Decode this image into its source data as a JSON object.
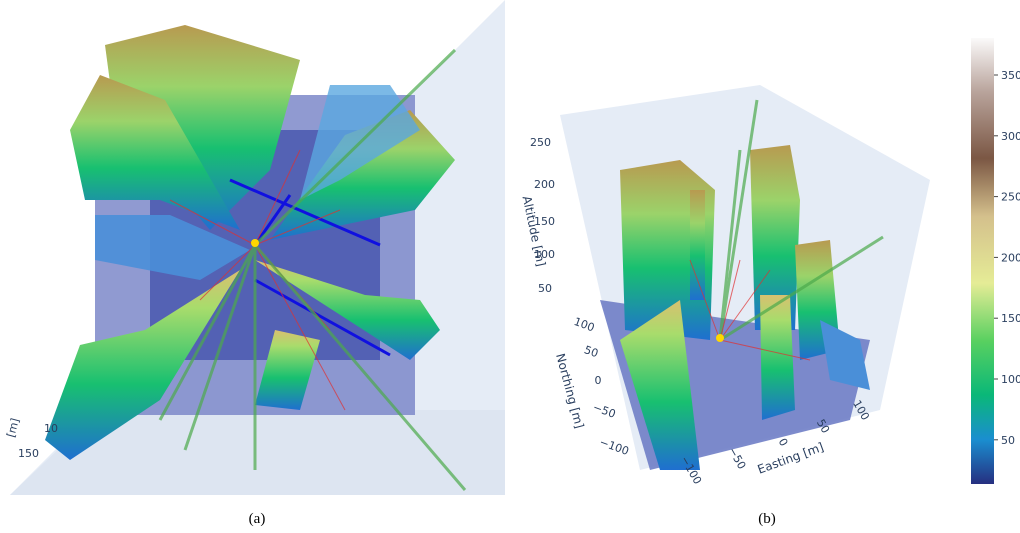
{
  "panels": [
    {
      "caption": "(a)",
      "axis_label": "[m]",
      "tick_labels": [
        "10",
        "150"
      ]
    },
    {
      "caption": "(b)",
      "axes": {
        "altitude": {
          "title": "Altitude [m]",
          "ticks": [
            "250",
            "200",
            "150",
            "100",
            "50"
          ]
        },
        "northing": {
          "title": "Northing [m]",
          "ticks": [
            "100",
            "50",
            "0",
            "−50",
            "−100"
          ]
        },
        "easting": {
          "title": "Easting [m]",
          "ticks": [
            "−100",
            "−50",
            "0",
            "50",
            "100"
          ]
        }
      }
    }
  ],
  "colorbar": {
    "ticks": [
      "350",
      "300",
      "250",
      "200",
      "150",
      "100",
      "50"
    ]
  }
}
